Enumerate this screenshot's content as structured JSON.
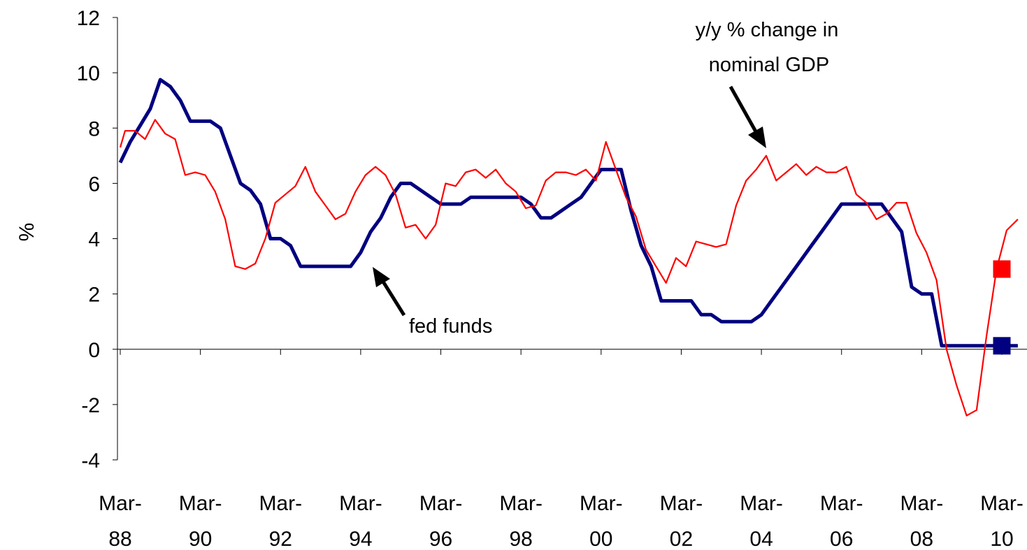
{
  "chart_data": {
    "type": "line",
    "ylabel": "%",
    "xlabel": "",
    "ylim": [
      -4,
      12
    ],
    "yticks": [
      12,
      10,
      8,
      6,
      4,
      2,
      0,
      -2,
      -4
    ],
    "xlim": [
      1988.0,
      2010.4
    ],
    "xticks": [
      {
        "x": 1988,
        "line1": "Mar-",
        "line2": "88"
      },
      {
        "x": 1990,
        "line1": "Mar-",
        "line2": "90"
      },
      {
        "x": 1992,
        "line1": "Mar-",
        "line2": "92"
      },
      {
        "x": 1994,
        "line1": "Mar-",
        "line2": "94"
      },
      {
        "x": 1996,
        "line1": "Mar-",
        "line2": "96"
      },
      {
        "x": 1998,
        "line1": "Mar-",
        "line2": "98"
      },
      {
        "x": 2000,
        "line1": "Mar-",
        "line2": "00"
      },
      {
        "x": 2002,
        "line1": "Mar-",
        "line2": "02"
      },
      {
        "x": 2004,
        "line1": "Mar-",
        "line2": "04"
      },
      {
        "x": 2006,
        "line1": "Mar-",
        "line2": "06"
      },
      {
        "x": 2008,
        "line1": "Mar-",
        "line2": "08"
      },
      {
        "x": 2010,
        "line1": "Mar-",
        "line2": "10"
      }
    ],
    "grid": false,
    "series": [
      {
        "name": "fed funds",
        "color": "#000080",
        "points": [
          [
            1988.0,
            6.75
          ],
          [
            1988.25,
            7.5
          ],
          [
            1988.5,
            8.1
          ],
          [
            1988.75,
            8.7
          ],
          [
            1989.0,
            9.75
          ],
          [
            1989.25,
            9.5
          ],
          [
            1989.5,
            9.0
          ],
          [
            1989.75,
            8.25
          ],
          [
            1990.0,
            8.25
          ],
          [
            1990.25,
            8.25
          ],
          [
            1990.5,
            8.0
          ],
          [
            1990.75,
            7.0
          ],
          [
            1991.0,
            6.0
          ],
          [
            1991.25,
            5.75
          ],
          [
            1991.5,
            5.25
          ],
          [
            1991.75,
            4.0
          ],
          [
            1992.0,
            4.0
          ],
          [
            1992.25,
            3.75
          ],
          [
            1992.5,
            3.0
          ],
          [
            1992.75,
            3.0
          ],
          [
            1993.0,
            3.0
          ],
          [
            1993.25,
            3.0
          ],
          [
            1993.5,
            3.0
          ],
          [
            1993.75,
            3.0
          ],
          [
            1994.0,
            3.5
          ],
          [
            1994.25,
            4.25
          ],
          [
            1994.5,
            4.75
          ],
          [
            1994.75,
            5.5
          ],
          [
            1995.0,
            6.0
          ],
          [
            1995.25,
            6.0
          ],
          [
            1995.5,
            5.75
          ],
          [
            1995.75,
            5.5
          ],
          [
            1996.0,
            5.25
          ],
          [
            1996.25,
            5.25
          ],
          [
            1996.5,
            5.25
          ],
          [
            1996.75,
            5.5
          ],
          [
            1997.0,
            5.5
          ],
          [
            1997.25,
            5.5
          ],
          [
            1997.5,
            5.5
          ],
          [
            1997.75,
            5.5
          ],
          [
            1998.0,
            5.5
          ],
          [
            1998.25,
            5.25
          ],
          [
            1998.5,
            4.75
          ],
          [
            1998.75,
            4.75
          ],
          [
            1999.0,
            5.0
          ],
          [
            1999.25,
            5.25
          ],
          [
            1999.5,
            5.5
          ],
          [
            1999.75,
            6.0
          ],
          [
            2000.0,
            6.5
          ],
          [
            2000.25,
            6.5
          ],
          [
            2000.5,
            6.5
          ],
          [
            2000.75,
            5.0
          ],
          [
            2001.0,
            3.75
          ],
          [
            2001.25,
            3.0
          ],
          [
            2001.5,
            1.75
          ],
          [
            2001.75,
            1.75
          ],
          [
            2002.0,
            1.75
          ],
          [
            2002.25,
            1.75
          ],
          [
            2002.5,
            1.25
          ],
          [
            2002.75,
            1.25
          ],
          [
            2003.0,
            1.0
          ],
          [
            2003.25,
            1.0
          ],
          [
            2003.5,
            1.0
          ],
          [
            2003.75,
            1.0
          ],
          [
            2004.0,
            1.25
          ],
          [
            2004.25,
            1.75
          ],
          [
            2004.5,
            2.25
          ],
          [
            2004.75,
            2.75
          ],
          [
            2005.0,
            3.25
          ],
          [
            2005.25,
            3.75
          ],
          [
            2005.5,
            4.25
          ],
          [
            2005.75,
            4.75
          ],
          [
            2006.0,
            5.25
          ],
          [
            2006.25,
            5.25
          ],
          [
            2006.5,
            5.25
          ],
          [
            2006.75,
            5.25
          ],
          [
            2007.0,
            5.25
          ],
          [
            2007.25,
            4.75
          ],
          [
            2007.5,
            4.25
          ],
          [
            2007.75,
            2.25
          ],
          [
            2008.0,
            2.0
          ],
          [
            2008.25,
            2.0
          ],
          [
            2008.5,
            0.125
          ],
          [
            2008.75,
            0.125
          ],
          [
            2009.0,
            0.125
          ],
          [
            2009.25,
            0.125
          ],
          [
            2009.5,
            0.125
          ],
          [
            2009.75,
            0.125
          ],
          [
            2010.0,
            0.125
          ],
          [
            2010.25,
            0.125
          ],
          [
            2010.4,
            0.125
          ]
        ],
        "marker": {
          "x": 2010.0,
          "y": 0.125,
          "shape": "square"
        }
      },
      {
        "name": "y/y % change in nominal GDP",
        "color": "#ff0000",
        "points": [
          [
            1988.0,
            7.3
          ],
          [
            1988.12,
            7.9
          ],
          [
            1988.37,
            7.9
          ],
          [
            1988.62,
            7.6
          ],
          [
            1988.87,
            8.3
          ],
          [
            1989.12,
            7.8
          ],
          [
            1989.37,
            7.6
          ],
          [
            1989.62,
            6.3
          ],
          [
            1989.87,
            6.4
          ],
          [
            1990.12,
            6.3
          ],
          [
            1990.37,
            5.7
          ],
          [
            1990.62,
            4.7
          ],
          [
            1990.87,
            3.0
          ],
          [
            1991.12,
            2.9
          ],
          [
            1991.37,
            3.1
          ],
          [
            1991.62,
            4.0
          ],
          [
            1991.87,
            5.3
          ],
          [
            1992.12,
            5.6
          ],
          [
            1992.37,
            5.9
          ],
          [
            1992.62,
            6.6
          ],
          [
            1992.87,
            5.7
          ],
          [
            1993.12,
            5.2
          ],
          [
            1993.37,
            4.7
          ],
          [
            1993.62,
            4.9
          ],
          [
            1993.87,
            5.7
          ],
          [
            1994.12,
            6.3
          ],
          [
            1994.37,
            6.6
          ],
          [
            1994.62,
            6.3
          ],
          [
            1994.87,
            5.6
          ],
          [
            1995.12,
            4.4
          ],
          [
            1995.37,
            4.5
          ],
          [
            1995.62,
            4.0
          ],
          [
            1995.87,
            4.5
          ],
          [
            1996.12,
            6.0
          ],
          [
            1996.37,
            5.9
          ],
          [
            1996.62,
            6.4
          ],
          [
            1996.87,
            6.5
          ],
          [
            1997.12,
            6.2
          ],
          [
            1997.37,
            6.5
          ],
          [
            1997.62,
            6.0
          ],
          [
            1997.87,
            5.7
          ],
          [
            1998.12,
            5.1
          ],
          [
            1998.37,
            5.2
          ],
          [
            1998.62,
            6.1
          ],
          [
            1998.87,
            6.4
          ],
          [
            1999.12,
            6.4
          ],
          [
            1999.37,
            6.3
          ],
          [
            1999.62,
            6.5
          ],
          [
            1999.87,
            6.1
          ],
          [
            2000.12,
            7.5
          ],
          [
            2000.37,
            6.5
          ],
          [
            2000.62,
            5.5
          ],
          [
            2000.87,
            4.8
          ],
          [
            2001.12,
            3.6
          ],
          [
            2001.37,
            3.0
          ],
          [
            2001.62,
            2.4
          ],
          [
            2001.87,
            3.3
          ],
          [
            2002.12,
            3.0
          ],
          [
            2002.37,
            3.9
          ],
          [
            2002.62,
            3.8
          ],
          [
            2002.87,
            3.7
          ],
          [
            2003.12,
            3.8
          ],
          [
            2003.37,
            5.2
          ],
          [
            2003.62,
            6.1
          ],
          [
            2003.87,
            6.5
          ],
          [
            2004.12,
            7.0
          ],
          [
            2004.37,
            6.1
          ],
          [
            2004.62,
            6.4
          ],
          [
            2004.87,
            6.7
          ],
          [
            2005.12,
            6.3
          ],
          [
            2005.37,
            6.6
          ],
          [
            2005.62,
            6.4
          ],
          [
            2005.87,
            6.4
          ],
          [
            2006.12,
            6.6
          ],
          [
            2006.37,
            5.6
          ],
          [
            2006.62,
            5.3
          ],
          [
            2006.87,
            4.7
          ],
          [
            2007.12,
            4.9
          ],
          [
            2007.37,
            5.3
          ],
          [
            2007.62,
            5.3
          ],
          [
            2007.87,
            4.2
          ],
          [
            2008.12,
            3.5
          ],
          [
            2008.37,
            2.5
          ],
          [
            2008.62,
            0.0
          ],
          [
            2008.87,
            -1.3
          ],
          [
            2009.12,
            -2.4
          ],
          [
            2009.37,
            -2.2
          ],
          [
            2009.62,
            0.5
          ],
          [
            2009.87,
            2.9
          ],
          [
            2010.12,
            4.3
          ],
          [
            2010.4,
            4.7
          ]
        ],
        "marker": {
          "x": 2010.0,
          "y": 2.9,
          "shape": "square"
        }
      }
    ],
    "annotations": [
      {
        "lines": [
          "y/y % change in",
          "nominal GDP"
        ],
        "arrow_from": [
          2003.2,
          9.4
        ],
        "arrow_to": [
          2003.8,
          7.4
        ]
      },
      {
        "lines": [
          "fed funds"
        ],
        "arrow_from": [
          1995.05,
          1.2
        ],
        "arrow_to": [
          1994.3,
          2.9
        ]
      }
    ]
  }
}
